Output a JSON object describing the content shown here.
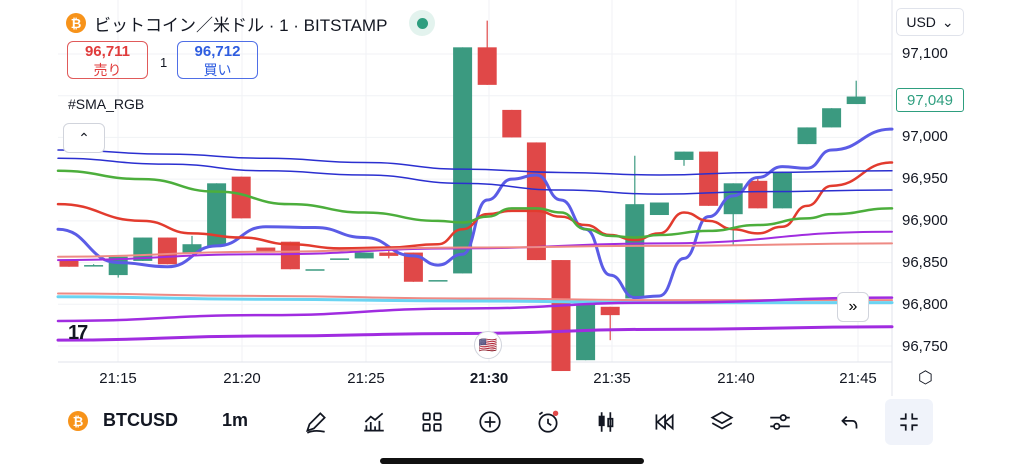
{
  "header": {
    "coin_glyph": "₿",
    "title": "ビットコイン／米ドル · 1 · BITSTAMP",
    "live_indicator": "market-open-dot"
  },
  "trade": {
    "sell_price": "96,711",
    "sell_label": "売り",
    "spread": "1",
    "buy_price": "96,712",
    "buy_label": "買い"
  },
  "indicator": {
    "name": "#SMA_RGB"
  },
  "collapse_glyph": "⌃",
  "currency": {
    "label": "USD",
    "caret": "⌄"
  },
  "price_axis": {
    "ticks": [
      "97,100",
      "97,000",
      "96,950",
      "96,900",
      "96,850",
      "96,800",
      "96,750"
    ],
    "last_price": "97,049"
  },
  "time_axis": {
    "ticks": [
      "21:15",
      "21:20",
      "21:25",
      "21:30",
      "21:35",
      "21:40",
      "21:45"
    ],
    "bold_tick": "21:30"
  },
  "scroll_glyph": "»",
  "logo_text": "17",
  "event_flag": "🇺🇸",
  "toolbar": {
    "symbol": "BTCUSD",
    "interval": "1m",
    "buttons": [
      "drawing-tool",
      "indicators",
      "layout-grid",
      "add",
      "alert",
      "candle-type",
      "replay",
      "layers",
      "settings-sliders",
      "undo",
      "collapse"
    ]
  },
  "colors": {
    "up": "#3b9a80",
    "down": "#e04848",
    "sma_blue": "#5b5ce6",
    "sma_red": "#e23b2e",
    "sma_green": "#4cae3c",
    "sma_navy": "#2b2fd0",
    "sma_cyan": "#6ad4f2",
    "sma_purple": "#a02ce0",
    "sma_salmon": "#ee8a84"
  },
  "chart_data": {
    "type": "candlestick",
    "x_ticks": [
      "21:15",
      "21:20",
      "21:25",
      "21:30",
      "21:35",
      "21:40",
      "21:45"
    ],
    "ylim": [
      96730,
      97130
    ],
    "candles": [
      {
        "o": 96852,
        "h": 96853,
        "l": 96845,
        "c": 96845
      },
      {
        "o": 96847,
        "h": 96848,
        "l": 96846,
        "c": 96847
      },
      {
        "o": 96835,
        "h": 96857,
        "l": 96832,
        "c": 96857
      },
      {
        "o": 96852,
        "h": 96880,
        "l": 96852,
        "c": 96880
      },
      {
        "o": 96880,
        "h": 96880,
        "l": 96848,
        "c": 96848
      },
      {
        "o": 96862,
        "h": 96882,
        "l": 96862,
        "c": 96872
      },
      {
        "o": 96870,
        "h": 96945,
        "l": 96870,
        "c": 96945
      },
      {
        "o": 96953,
        "h": 96953,
        "l": 96903,
        "c": 96903
      },
      {
        "o": 96868,
        "h": 96868,
        "l": 96862,
        "c": 96862
      },
      {
        "o": 96875,
        "h": 96875,
        "l": 96842,
        "c": 96842
      },
      {
        "o": 96842,
        "h": 96842,
        "l": 96842,
        "c": 96842
      },
      {
        "o": 96855,
        "h": 96855,
        "l": 96855,
        "c": 96855
      },
      {
        "o": 96855,
        "h": 96862,
        "l": 96855,
        "c": 96862
      },
      {
        "o": 96862,
        "h": 96870,
        "l": 96855,
        "c": 96858
      },
      {
        "o": 96862,
        "h": 96862,
        "l": 96827,
        "c": 96827
      },
      {
        "o": 96829,
        "h": 96829,
        "l": 96829,
        "c": 96829
      },
      {
        "o": 96837,
        "h": 97108,
        "l": 96837,
        "c": 97108
      },
      {
        "o": 97108,
        "h": 97140,
        "l": 97063,
        "c": 97063
      },
      {
        "o": 97033,
        "h": 97033,
        "l": 97000,
        "c": 97000
      },
      {
        "o": 96994,
        "h": 96994,
        "l": 96853,
        "c": 96853
      },
      {
        "o": 96853,
        "h": 96853,
        "l": 96720,
        "c": 96720
      },
      {
        "o": 96733,
        "h": 96800,
        "l": 96733,
        "c": 96800
      },
      {
        "o": 96797,
        "h": 96797,
        "l": 96757,
        "c": 96787
      },
      {
        "o": 96807,
        "h": 96978,
        "l": 96807,
        "c": 96920
      },
      {
        "o": 96907,
        "h": 96922,
        "l": 96907,
        "c": 96922
      },
      {
        "o": 96973,
        "h": 96983,
        "l": 96966,
        "c": 96983
      },
      {
        "o": 96983,
        "h": 96983,
        "l": 96918,
        "c": 96918
      },
      {
        "o": 96908,
        "h": 96945,
        "l": 96870,
        "c": 96945
      },
      {
        "o": 96948,
        "h": 96953,
        "l": 96915,
        "c": 96915
      },
      {
        "o": 96915,
        "h": 96959,
        "l": 96915,
        "c": 96959
      },
      {
        "o": 96992,
        "h": 97012,
        "l": 96992,
        "c": 97012
      },
      {
        "o": 97012,
        "h": 97035,
        "l": 97012,
        "c": 97035
      },
      {
        "o": 97040,
        "h": 97068,
        "l": 97040,
        "c": 97049
      }
    ],
    "sma_lines": [
      {
        "name": "sma-blue-thick",
        "color": "#5b5ce6",
        "width": 3,
        "points": [
          [
            0,
            96890
          ],
          [
            2,
            96850
          ],
          [
            4,
            96845
          ],
          [
            6,
            96870
          ],
          [
            8,
            96893
          ],
          [
            10,
            96892
          ],
          [
            12,
            96880
          ],
          [
            14,
            96858
          ],
          [
            15,
            96847
          ],
          [
            16,
            96860
          ],
          [
            17,
            96925
          ],
          [
            18,
            96950
          ],
          [
            19,
            96955
          ],
          [
            20,
            96925
          ],
          [
            21,
            96890
          ],
          [
            22,
            96835
          ],
          [
            23,
            96808
          ],
          [
            24,
            96810
          ],
          [
            25,
            96855
          ],
          [
            26,
            96905
          ],
          [
            27,
            96930
          ],
          [
            28,
            96952
          ],
          [
            29,
            96965
          ],
          [
            30,
            96963
          ],
          [
            31,
            96985
          ],
          [
            32,
            97010
          ]
        ]
      },
      {
        "name": "sma-red",
        "color": "#e23b2e",
        "width": 2.5,
        "points": [
          [
            0,
            96920
          ],
          [
            3,
            96900
          ],
          [
            5,
            96885
          ],
          [
            7,
            96880
          ],
          [
            9,
            96872
          ],
          [
            11,
            96867
          ],
          [
            13,
            96868
          ],
          [
            15,
            96872
          ],
          [
            16,
            96890
          ],
          [
            17,
            96908
          ],
          [
            18,
            96912
          ],
          [
            19,
            96912
          ],
          [
            20,
            96905
          ],
          [
            21,
            96895
          ],
          [
            22,
            96883
          ],
          [
            23,
            96877
          ],
          [
            24,
            96885
          ],
          [
            25,
            96910
          ],
          [
            26,
            96900
          ],
          [
            27,
            96890
          ],
          [
            28,
            96885
          ],
          [
            29,
            96893
          ],
          [
            30,
            96918
          ],
          [
            31,
            96942
          ],
          [
            32,
            96970
          ]
        ]
      },
      {
        "name": "sma-green",
        "color": "#4cae3c",
        "width": 2.5,
        "points": [
          [
            0,
            96960
          ],
          [
            3,
            96950
          ],
          [
            6,
            96935
          ],
          [
            9,
            96920
          ],
          [
            12,
            96910
          ],
          [
            15,
            96900
          ],
          [
            16,
            96898
          ],
          [
            17,
            96905
          ],
          [
            18,
            96915
          ],
          [
            19,
            96915
          ],
          [
            20,
            96910
          ],
          [
            21,
            96890
          ],
          [
            22,
            96882
          ],
          [
            23,
            96880
          ],
          [
            24,
            96883
          ],
          [
            26,
            96888
          ],
          [
            28,
            96895
          ],
          [
            30,
            96903
          ],
          [
            31,
            96908
          ],
          [
            32,
            96915
          ]
        ]
      },
      {
        "name": "sma-navy-1",
        "color": "#2b2fd0",
        "width": 1.5,
        "points": [
          [
            0,
            96985
          ],
          [
            4,
            96980
          ],
          [
            8,
            96975
          ],
          [
            12,
            96970
          ],
          [
            16,
            96962
          ],
          [
            20,
            96958
          ],
          [
            24,
            96955
          ],
          [
            28,
            96958
          ],
          [
            32,
            96960
          ]
        ]
      },
      {
        "name": "sma-navy-2",
        "color": "#2b2fd0",
        "width": 1.5,
        "points": [
          [
            0,
            96975
          ],
          [
            4,
            96968
          ],
          [
            8,
            96960
          ],
          [
            12,
            96955
          ],
          [
            16,
            96945
          ],
          [
            20,
            96937
          ],
          [
            24,
            96932
          ],
          [
            28,
            96935
          ],
          [
            32,
            96937
          ]
        ]
      },
      {
        "name": "sma-purple-1",
        "color": "#a02ce0",
        "width": 2,
        "points": [
          [
            0,
            96853
          ],
          [
            8,
            96860
          ],
          [
            16,
            96867
          ],
          [
            24,
            96873
          ],
          [
            32,
            96887
          ]
        ]
      },
      {
        "name": "sma-salmon",
        "color": "#ee8a84",
        "width": 2,
        "points": [
          [
            0,
            96857
          ],
          [
            8,
            96863
          ],
          [
            16,
            96868
          ],
          [
            24,
            96870
          ],
          [
            32,
            96873
          ]
        ]
      },
      {
        "name": "sma-salmon-low",
        "color": "#ee8a84",
        "width": 2,
        "points": [
          [
            0,
            96813
          ],
          [
            8,
            96810
          ],
          [
            16,
            96807
          ],
          [
            24,
            96805
          ],
          [
            32,
            96805
          ]
        ]
      },
      {
        "name": "sma-cyan",
        "color": "#6ad4f2",
        "width": 3,
        "points": [
          [
            0,
            96809
          ],
          [
            8,
            96806
          ],
          [
            16,
            96804
          ],
          [
            24,
            96802
          ],
          [
            32,
            96802
          ]
        ]
      },
      {
        "name": "sma-purple-2",
        "color": "#a02ce0",
        "width": 2.5,
        "points": [
          [
            0,
            96780
          ],
          [
            8,
            96787
          ],
          [
            16,
            96795
          ],
          [
            24,
            96802
          ],
          [
            32,
            96808
          ]
        ]
      },
      {
        "name": "sma-purple-3",
        "color": "#a02ce0",
        "width": 3,
        "points": [
          [
            0,
            96757
          ],
          [
            8,
            96762
          ],
          [
            16,
            96765
          ],
          [
            24,
            96770
          ],
          [
            32,
            96773
          ]
        ]
      }
    ]
  }
}
